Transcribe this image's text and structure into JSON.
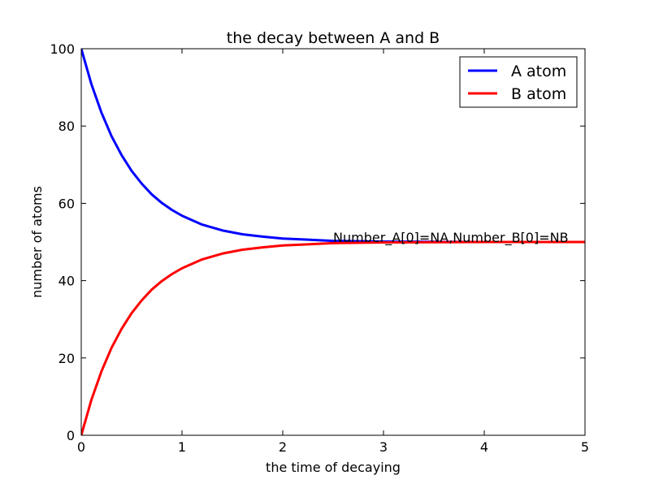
{
  "chart_data": {
    "type": "line",
    "title": "the decay between A and B",
    "xlabel": "the time of decaying",
    "ylabel": "number of atoms",
    "xlim": [
      0,
      5
    ],
    "ylim": [
      0,
      100
    ],
    "xticks": [
      0,
      1,
      2,
      3,
      4,
      5
    ],
    "yticks": [
      0,
      20,
      40,
      60,
      80,
      100
    ],
    "grid": false,
    "legend_position": "top-right",
    "series": [
      {
        "name": "A atom",
        "color": "#0000ff",
        "x": [
          0,
          0.1,
          0.2,
          0.3,
          0.4,
          0.5,
          0.6,
          0.7,
          0.8,
          0.9,
          1.0,
          1.2,
          1.4,
          1.6,
          1.8,
          2.0,
          2.25,
          2.5,
          3.0,
          3.5,
          4.0,
          4.5,
          5.0
        ],
        "y": [
          100,
          90.9,
          83.5,
          77.4,
          72.5,
          68.4,
          65.1,
          62.3,
          60.1,
          58.3,
          56.8,
          54.5,
          53.0,
          52.0,
          51.4,
          50.9,
          50.6,
          50.3,
          50.1,
          50.05,
          50.0,
          50.0,
          50.0
        ]
      },
      {
        "name": "B atom",
        "color": "#ff0000",
        "x": [
          0,
          0.1,
          0.2,
          0.3,
          0.4,
          0.5,
          0.6,
          0.7,
          0.8,
          0.9,
          1.0,
          1.2,
          1.4,
          1.6,
          1.8,
          2.0,
          2.25,
          2.5,
          3.0,
          3.5,
          4.0,
          4.5,
          5.0
        ],
        "y": [
          0,
          9.1,
          16.5,
          22.6,
          27.5,
          31.6,
          34.9,
          37.7,
          39.9,
          41.7,
          43.2,
          45.5,
          47.0,
          48.0,
          48.6,
          49.1,
          49.4,
          49.7,
          49.9,
          49.95,
          50.0,
          50.0,
          50.0
        ]
      }
    ],
    "annotations": [
      {
        "text": "Number_A[0]=NA,Number_B[0]=NB",
        "x": 2.5,
        "y": 50
      }
    ]
  }
}
